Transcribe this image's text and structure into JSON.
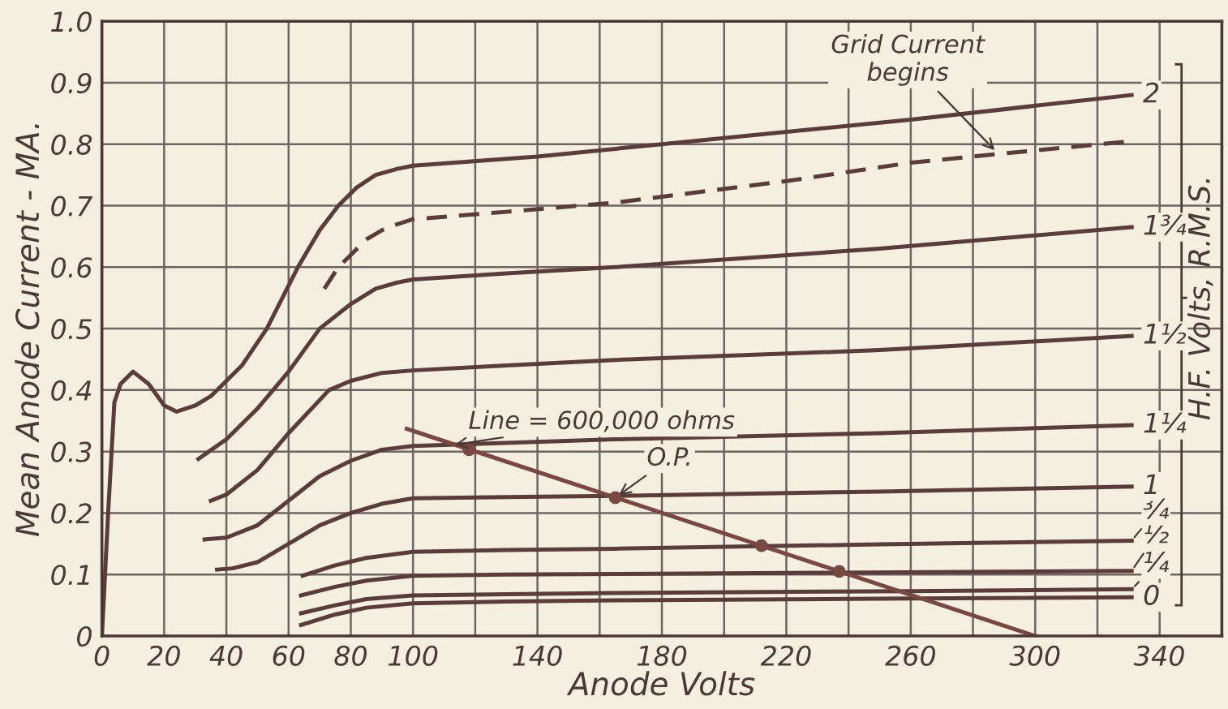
{
  "chart_data": {
    "type": "line",
    "xlabel": "Anode Volts",
    "ylabel": "Mean Anode Current - MA.",
    "legend_title": "H.F. Volts, R.M.S.",
    "xlim": [
      0,
      360
    ],
    "ylim": [
      0,
      1.0
    ],
    "xticks": [
      0,
      20,
      40,
      60,
      80,
      100,
      {
        "value": 120,
        "label": null
      },
      140,
      {
        "value": 160,
        "label": null
      },
      180,
      {
        "value": 200,
        "label": null
      },
      220,
      {
        "value": 240,
        "label": null
      },
      260,
      {
        "value": 280,
        "label": null
      },
      300,
      {
        "value": 320,
        "label": null
      },
      340
    ],
    "yticks": [
      0,
      0.1,
      0.2,
      0.3,
      0.4,
      0.5,
      0.6,
      0.7,
      0.8,
      0.9,
      {
        "value": 1.0,
        "label": "1.0"
      }
    ],
    "grid": true,
    "marker": "none",
    "legend": "right",
    "series": [
      {
        "name": "2",
        "color": "#5a3d3a",
        "x": [
          0,
          2,
          4,
          6,
          10,
          15,
          20,
          24,
          30,
          35,
          45,
          53,
          63,
          70,
          76,
          82,
          88,
          95,
          100,
          140,
          180,
          260,
          331
        ],
        "values": [
          0,
          0.2,
          0.38,
          0.41,
          0.43,
          0.41,
          0.375,
          0.365,
          0.375,
          0.39,
          0.44,
          0.5,
          0.6,
          0.66,
          0.7,
          0.73,
          0.75,
          0.76,
          0.765,
          0.78,
          0.8,
          0.84,
          0.88
        ]
      },
      {
        "color": "#5a3d3a",
        "line_style": "dashed",
        "x": [
          71.5,
          76,
          80,
          85,
          90,
          95,
          100,
          130,
          165,
          220,
          260,
          290,
          331
        ],
        "values": [
          0.565,
          0.6,
          0.62,
          0.645,
          0.66,
          0.67,
          0.678,
          0.69,
          0.705,
          0.74,
          0.77,
          0.785,
          0.805
        ]
      },
      {
        "name": "1¾",
        "color": "#5a3d3a",
        "x": [
          31,
          40,
          50,
          60,
          70,
          80,
          88,
          95,
          100,
          130,
          165,
          250,
          331
        ],
        "values": [
          0.288,
          0.32,
          0.37,
          0.43,
          0.5,
          0.54,
          0.565,
          0.575,
          0.58,
          0.59,
          0.6,
          0.63,
          0.665
        ]
      },
      {
        "name": "1½",
        "color": "#5a3d3a",
        "x": [
          35,
          40,
          50,
          60,
          73,
          80,
          90,
          100,
          130,
          165,
          250,
          331
        ],
        "values": [
          0.22,
          0.23,
          0.27,
          0.33,
          0.4,
          0.415,
          0.428,
          0.432,
          0.44,
          0.449,
          0.465,
          0.488
        ]
      },
      {
        "name": "1¼",
        "color": "#5a3d3a",
        "x": [
          33,
          40,
          50,
          60,
          70,
          80,
          90,
          100,
          118,
          165,
          250,
          331
        ],
        "values": [
          0.157,
          0.16,
          0.18,
          0.22,
          0.26,
          0.285,
          0.303,
          0.309,
          0.312,
          0.32,
          0.33,
          0.343
        ]
      },
      {
        "name": "1",
        "color": "#5a3d3a",
        "x": [
          37,
          42,
          50,
          60,
          70,
          80,
          90,
          100,
          130,
          165,
          250,
          331
        ],
        "values": [
          0.108,
          0.11,
          0.12,
          0.15,
          0.18,
          0.2,
          0.215,
          0.224,
          0.226,
          0.228,
          0.235,
          0.243
        ]
      },
      {
        "name": "¾",
        "color": "#5a3d3a",
        "x": [
          64.5,
          75,
          85,
          100,
          130,
          165,
          212,
          250,
          331
        ],
        "values": [
          0.098,
          0.115,
          0.127,
          0.137,
          0.14,
          0.142,
          0.146,
          0.149,
          0.155
        ]
      },
      {
        "name": "½",
        "color": "#5a3d3a",
        "x": [
          64,
          75,
          85,
          100,
          130,
          165,
          237,
          331
        ],
        "values": [
          0.066,
          0.08,
          0.09,
          0.098,
          0.1,
          0.101,
          0.103,
          0.106
        ]
      },
      {
        "name": "¼",
        "color": "#5a3d3a",
        "x": [
          64,
          75,
          85,
          100,
          130,
          165,
          260,
          331
        ],
        "values": [
          0.037,
          0.05,
          0.06,
          0.066,
          0.068,
          0.07,
          0.073,
          0.076
        ]
      },
      {
        "name": "0",
        "color": "#5a3d3a",
        "x": [
          64,
          75,
          85,
          100,
          130,
          165,
          260,
          331
        ],
        "values": [
          0.018,
          0.035,
          0.046,
          0.053,
          0.056,
          0.058,
          0.061,
          0.063
        ]
      },
      {
        "color": "#7a4843",
        "x": [
          98,
          300
        ],
        "values": [
          0.337,
          0
        ]
      },
      {
        "type": "scatter",
        "marker": "circle",
        "color": "#7a4843",
        "x": [
          118,
          165,
          212,
          237
        ],
        "values": [
          0.303,
          0.225,
          0.147,
          0.105
        ]
      }
    ],
    "annotations": [
      {
        "text": "Grid Current\nbegins",
        "x": 288,
        "y": 0.785
      },
      {
        "text": "Line = 600,000 ohms",
        "x": 112,
        "y": 0.31
      },
      {
        "text": "O.P.",
        "x": 165,
        "y": 0.225
      }
    ]
  }
}
